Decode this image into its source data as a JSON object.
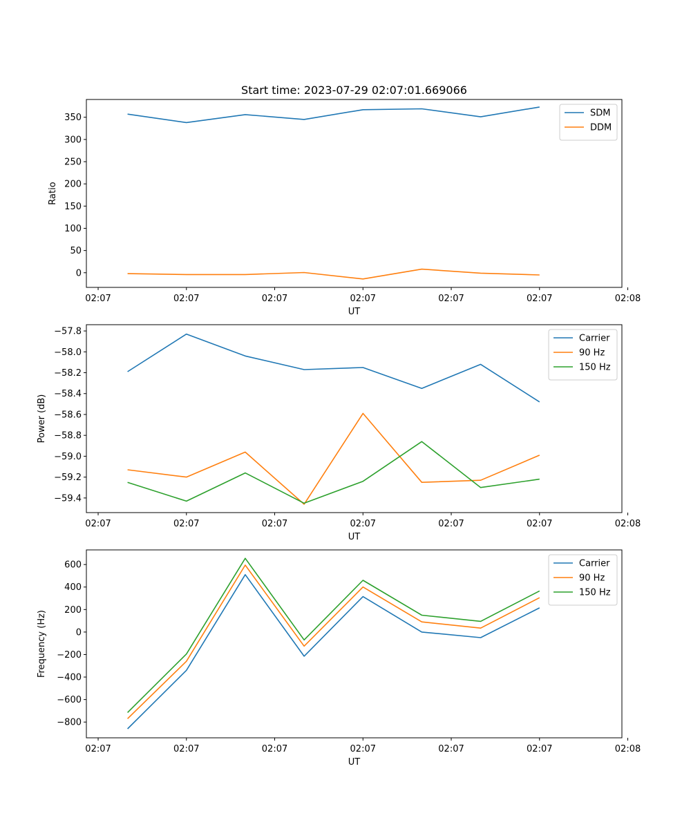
{
  "figure": {
    "title": "Start time: 2023-07-29 02:07:01.669066"
  },
  "chart_data": [
    {
      "type": "line",
      "name": "ratio-chart",
      "title": "Start time: 2023-07-29 02:07:01.669066",
      "xlabel": "UT",
      "ylabel": "Ratio",
      "x": [
        1,
        2,
        3,
        4,
        5,
        6,
        7,
        8
      ],
      "xlim": [
        0.3,
        9.4
      ],
      "x_ticks": [
        0.5,
        2,
        3.5,
        5,
        6.5,
        8,
        9.5
      ],
      "x_tick_labels": [
        "02:07",
        "02:07",
        "02:07",
        "02:07",
        "02:07",
        "02:07",
        "02:08"
      ],
      "ylim": [
        -33,
        390
      ],
      "y_ticks": [
        0,
        50,
        100,
        150,
        200,
        250,
        300,
        350
      ],
      "y_tick_labels": [
        "0",
        "50",
        "100",
        "150",
        "200",
        "250",
        "300",
        "350"
      ],
      "legend_position": "top-right",
      "grid": false,
      "series": [
        {
          "name": "SDM",
          "color": "#1f77b4",
          "values": [
            357,
            338,
            356,
            345,
            367,
            369,
            351,
            373
          ]
        },
        {
          "name": "DDM",
          "color": "#ff7f0e",
          "values": [
            -2,
            -4,
            -4,
            0.5,
            -14,
            8,
            -1,
            -5
          ]
        }
      ]
    },
    {
      "type": "line",
      "name": "power-chart",
      "xlabel": "UT",
      "ylabel": "Power (dB)",
      "x": [
        1,
        2,
        3,
        4,
        5,
        6,
        7,
        8
      ],
      "xlim": [
        0.3,
        9.4
      ],
      "x_ticks": [
        0.5,
        2,
        3.5,
        5,
        6.5,
        8,
        9.5
      ],
      "x_tick_labels": [
        "02:07",
        "02:07",
        "02:07",
        "02:07",
        "02:07",
        "02:07",
        "02:08"
      ],
      "ylim": [
        -59.54,
        -57.74
      ],
      "y_ticks": [
        -59.4,
        -59.2,
        -59.0,
        -58.8,
        -58.6,
        -58.4,
        -58.2,
        -58.0,
        -57.8
      ],
      "y_tick_labels": [
        "−59.4",
        "−59.2",
        "−59.0",
        "−58.8",
        "−58.6",
        "−58.4",
        "−58.2",
        "−58.0",
        "−57.8"
      ],
      "legend_position": "top-right",
      "grid": false,
      "series": [
        {
          "name": "Carrier",
          "color": "#1f77b4",
          "values": [
            -58.19,
            -57.83,
            -58.04,
            -58.17,
            -58.15,
            -58.35,
            -58.12,
            -58.48
          ]
        },
        {
          "name": "90 Hz",
          "color": "#ff7f0e",
          "values": [
            -59.13,
            -59.2,
            -58.96,
            -59.46,
            -58.59,
            -59.25,
            -59.23,
            -58.99
          ]
        },
        {
          "name": "150 Hz",
          "color": "#2ca02c",
          "values": [
            -59.25,
            -59.43,
            -59.16,
            -59.45,
            -59.24,
            -58.86,
            -59.3,
            -59.22
          ]
        }
      ]
    },
    {
      "type": "line",
      "name": "frequency-chart",
      "xlabel": "UT",
      "ylabel": "Frequency (Hz)",
      "x": [
        1,
        2,
        3,
        4,
        5,
        6,
        7,
        8
      ],
      "xlim": [
        0.3,
        9.4
      ],
      "x_ticks": [
        0.5,
        2,
        3.5,
        5,
        6.5,
        8,
        9.5
      ],
      "x_tick_labels": [
        "02:07",
        "02:07",
        "02:07",
        "02:07",
        "02:07",
        "02:07",
        "02:08"
      ],
      "ylim": [
        -940,
        730
      ],
      "y_ticks": [
        -800,
        -600,
        -400,
        -200,
        0,
        200,
        400,
        600
      ],
      "y_tick_labels": [
        "−800",
        "−600",
        "−400",
        "−200",
        "0",
        "200",
        "400",
        "600"
      ],
      "legend_position": "top-right",
      "grid": false,
      "series": [
        {
          "name": "Carrier",
          "color": "#1f77b4",
          "values": [
            -860,
            -340,
            510,
            -215,
            315,
            0,
            -50,
            215
          ]
        },
        {
          "name": "90 Hz",
          "color": "#ff7f0e",
          "values": [
            -770,
            -260,
            595,
            -125,
            400,
            90,
            35,
            305
          ]
        },
        {
          "name": "150 Hz",
          "color": "#2ca02c",
          "values": [
            -715,
            -195,
            655,
            -70,
            460,
            150,
            95,
            365
          ]
        }
      ]
    }
  ]
}
